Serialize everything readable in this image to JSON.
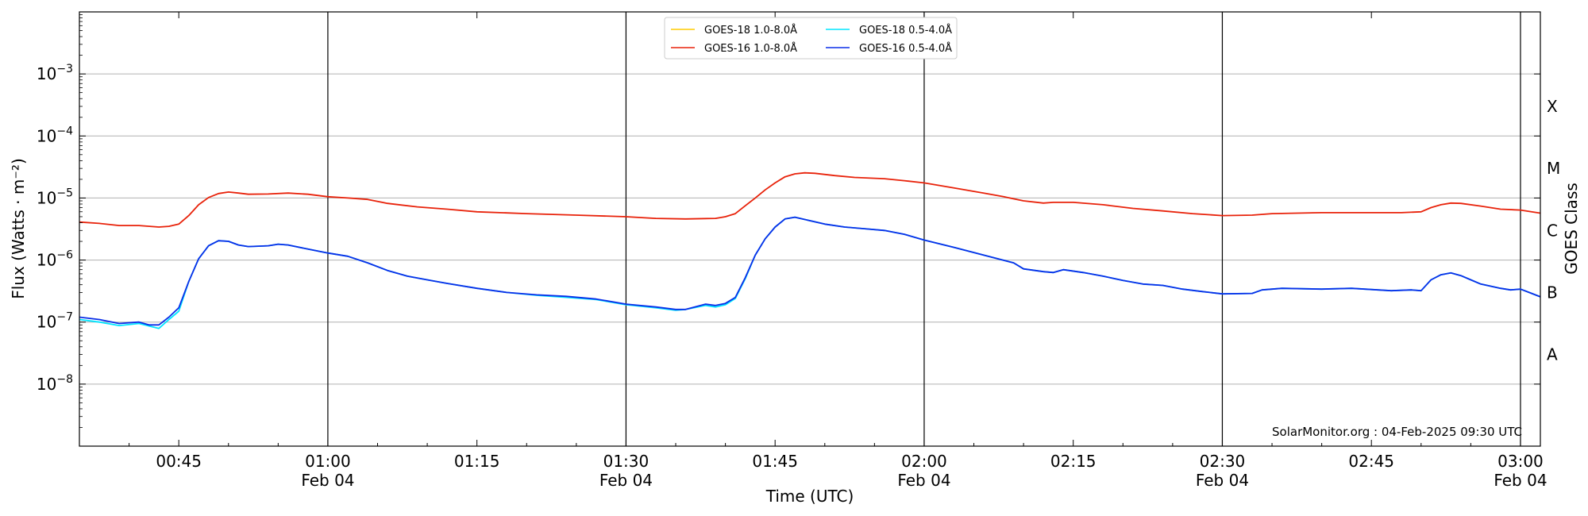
{
  "chart_data": {
    "type": "line",
    "title": "",
    "xlabel": "Time (UTC)",
    "ylabel": "Flux (Watts · m⁻²)",
    "y2label": "GOES Class",
    "yscale": "log",
    "x_unit": "UTC time HH:MM",
    "xlim": [
      "00:35",
      "03:01"
    ],
    "ylim": [
      1e-09,
      0.01
    ],
    "grid": "horizontal at decades",
    "legend_position": "top-center",
    "x_ticks": [
      {
        "time": "00:45",
        "label": "00:45",
        "date": ""
      },
      {
        "time": "01:00",
        "label": "01:00",
        "date": "Feb 04"
      },
      {
        "time": "01:15",
        "label": "01:15",
        "date": ""
      },
      {
        "time": "01:30",
        "label": "01:30",
        "date": "Feb 04"
      },
      {
        "time": "01:45",
        "label": "01:45",
        "date": ""
      },
      {
        "time": "02:00",
        "label": "02:00",
        "date": "Feb 04"
      },
      {
        "time": "02:15",
        "label": "02:15",
        "date": ""
      },
      {
        "time": "02:30",
        "label": "02:30",
        "date": "Feb 04"
      },
      {
        "time": "02:45",
        "label": "02:45",
        "date": ""
      },
      {
        "time": "03:00",
        "label": "03:00",
        "date": "Feb 04"
      }
    ],
    "vertical_lines": [
      "01:00",
      "01:30",
      "02:00",
      "02:30",
      "03:00"
    ],
    "y_ticks": [
      {
        "value": 1e-08,
        "base": "10",
        "exp": "−8"
      },
      {
        "value": 1e-07,
        "base": "10",
        "exp": "−7"
      },
      {
        "value": 1e-06,
        "base": "10",
        "exp": "−6"
      },
      {
        "value": 1e-05,
        "base": "10",
        "exp": "−5"
      },
      {
        "value": 0.0001,
        "base": "10",
        "exp": "−4"
      },
      {
        "value": 0.001,
        "base": "10",
        "exp": "−3"
      }
    ],
    "goes_classes": [
      {
        "label": "A",
        "value": 3e-08
      },
      {
        "label": "B",
        "value": 3e-07
      },
      {
        "label": "C",
        "value": 3e-06
      },
      {
        "label": "M",
        "value": 3e-05
      },
      {
        "label": "X",
        "value": 0.0003
      }
    ],
    "annotation": "SolarMonitor.org : 04-Feb-2025 09:30 UTC",
    "series": [
      {
        "name": "GOES-18 1.0-8.0Å",
        "color": "#ffcc00",
        "points": []
      },
      {
        "name": "GOES-18 0.5-4.0Å",
        "color": "#00e5ff",
        "points": [
          [
            "00:35",
            1.1e-07
          ],
          [
            "00:37",
            1e-07
          ],
          [
            "00:39",
            8.8e-08
          ],
          [
            "00:41",
            9.5e-08
          ],
          [
            "00:43",
            7.9e-08
          ],
          [
            "00:44",
            1.1e-07
          ],
          [
            "00:45",
            1.5e-07
          ],
          [
            "00:46",
            4.5e-07
          ],
          [
            "00:47",
            1.05e-06
          ],
          [
            "00:48",
            1.7e-06
          ],
          [
            "00:49",
            2.05e-06
          ],
          [
            "00:50",
            2e-06
          ],
          [
            "00:51",
            1.75e-06
          ],
          [
            "00:52",
            1.65e-06
          ],
          [
            "00:54",
            1.7e-06
          ],
          [
            "00:55",
            1.8e-06
          ],
          [
            "00:56",
            1.75e-06
          ],
          [
            "00:58",
            1.5e-06
          ],
          [
            "01:00",
            1.3e-06
          ],
          [
            "01:02",
            1.15e-06
          ],
          [
            "01:04",
            9e-07
          ],
          [
            "01:06",
            6.8e-07
          ],
          [
            "01:08",
            5.5e-07
          ],
          [
            "01:10",
            4.8e-07
          ],
          [
            "01:12",
            4.2e-07
          ],
          [
            "01:15",
            3.5e-07
          ],
          [
            "01:18",
            3e-07
          ],
          [
            "01:21",
            2.7e-07
          ],
          [
            "01:24",
            2.5e-07
          ],
          [
            "01:27",
            2.3e-07
          ],
          [
            "01:30",
            1.9e-07
          ],
          [
            "01:33",
            1.7e-07
          ],
          [
            "01:35",
            1.55e-07
          ],
          [
            "01:36",
            1.6e-07
          ],
          [
            "01:38",
            1.85e-07
          ],
          [
            "01:39",
            1.75e-07
          ],
          [
            "01:40",
            1.9e-07
          ],
          [
            "01:41",
            2.4e-07
          ],
          [
            "01:42",
            5e-07
          ],
          [
            "01:43",
            1.2e-06
          ],
          [
            "01:44",
            2.2e-06
          ],
          [
            "01:45",
            3.4e-06
          ],
          [
            "01:46",
            4.6e-06
          ],
          [
            "01:47",
            4.9e-06
          ],
          [
            "01:48",
            4.5e-06
          ],
          [
            "01:50",
            3.8e-06
          ],
          [
            "01:52",
            3.4e-06
          ],
          [
            "01:54",
            3.2e-06
          ],
          [
            "01:56",
            3e-06
          ],
          [
            "01:58",
            2.6e-06
          ],
          [
            "02:00",
            2.1e-06
          ],
          [
            "02:03",
            1.6e-06
          ],
          [
            "02:06",
            1.2e-06
          ],
          [
            "02:09",
            9e-07
          ],
          [
            "02:10",
            7.2e-07
          ],
          [
            "02:12",
            6.5e-07
          ],
          [
            "02:13",
            6.3e-07
          ],
          [
            "02:14",
            7e-07
          ],
          [
            "02:16",
            6.3e-07
          ],
          [
            "02:18",
            5.5e-07
          ],
          [
            "02:20",
            4.7e-07
          ],
          [
            "02:22",
            4.1e-07
          ],
          [
            "02:24",
            3.9e-07
          ],
          [
            "02:26",
            3.4e-07
          ],
          [
            "02:28",
            3.1e-07
          ],
          [
            "02:30",
            2.85e-07
          ],
          [
            "02:33",
            2.9e-07
          ],
          [
            "02:34",
            3.3e-07
          ],
          [
            "02:36",
            3.5e-07
          ],
          [
            "02:40",
            3.4e-07
          ],
          [
            "02:43",
            3.5e-07
          ],
          [
            "02:47",
            3.2e-07
          ],
          [
            "02:49",
            3.3e-07
          ],
          [
            "02:50",
            3.2e-07
          ],
          [
            "02:51",
            4.8e-07
          ],
          [
            "02:52",
            5.8e-07
          ],
          [
            "02:53",
            6.2e-07
          ],
          [
            "02:54",
            5.6e-07
          ],
          [
            "02:55",
            4.8e-07
          ],
          [
            "02:56",
            4.1e-07
          ],
          [
            "02:58",
            3.5e-07
          ],
          [
            "02:59",
            3.3e-07
          ],
          [
            "03:00",
            3.4e-07
          ],
          [
            "03:01",
            2.95e-07
          ],
          [
            "03:02",
            2.55e-07
          ]
        ]
      },
      {
        "name": "GOES-16 1.0-8.0Å",
        "color": "#e8220a",
        "points": [
          [
            "00:35",
            4.1e-06
          ],
          [
            "00:37",
            3.9e-06
          ],
          [
            "00:39",
            3.6e-06
          ],
          [
            "00:41",
            3.6e-06
          ],
          [
            "00:43",
            3.4e-06
          ],
          [
            "00:44",
            3.5e-06
          ],
          [
            "00:45",
            3.8e-06
          ],
          [
            "00:46",
            5.2e-06
          ],
          [
            "00:47",
            7.8e-06
          ],
          [
            "00:48",
            1.02e-05
          ],
          [
            "00:49",
            1.18e-05
          ],
          [
            "00:50",
            1.25e-05
          ],
          [
            "00:51",
            1.2e-05
          ],
          [
            "00:52",
            1.15e-05
          ],
          [
            "00:54",
            1.16e-05
          ],
          [
            "00:56",
            1.2e-05
          ],
          [
            "00:58",
            1.15e-05
          ],
          [
            "01:00",
            1.05e-05
          ],
          [
            "01:02",
            1e-05
          ],
          [
            "01:04",
            9.5e-06
          ],
          [
            "01:06",
            8.2e-06
          ],
          [
            "01:09",
            7.2e-06
          ],
          [
            "01:12",
            6.6e-06
          ],
          [
            "01:15",
            6e-06
          ],
          [
            "01:20",
            5.6e-06
          ],
          [
            "01:25",
            5.3e-06
          ],
          [
            "01:30",
            5e-06
          ],
          [
            "01:33",
            4.7e-06
          ],
          [
            "01:36",
            4.6e-06
          ],
          [
            "01:39",
            4.7e-06
          ],
          [
            "01:40",
            5e-06
          ],
          [
            "01:41",
            5.6e-06
          ],
          [
            "01:42",
            7.5e-06
          ],
          [
            "01:43",
            1e-05
          ],
          [
            "01:44",
            1.35e-05
          ],
          [
            "01:45",
            1.75e-05
          ],
          [
            "01:46",
            2.2e-05
          ],
          [
            "01:47",
            2.45e-05
          ],
          [
            "01:48",
            2.55e-05
          ],
          [
            "01:49",
            2.5e-05
          ],
          [
            "01:51",
            2.3e-05
          ],
          [
            "01:53",
            2.15e-05
          ],
          [
            "01:56",
            2.05e-05
          ],
          [
            "01:58",
            1.9e-05
          ],
          [
            "02:00",
            1.75e-05
          ],
          [
            "02:03",
            1.45e-05
          ],
          [
            "02:06",
            1.2e-05
          ],
          [
            "02:08",
            1.05e-05
          ],
          [
            "02:10",
            9e-06
          ],
          [
            "02:12",
            8.3e-06
          ],
          [
            "02:13",
            8.5e-06
          ],
          [
            "02:15",
            8.5e-06
          ],
          [
            "02:18",
            7.8e-06
          ],
          [
            "02:21",
            6.8e-06
          ],
          [
            "02:24",
            6.2e-06
          ],
          [
            "02:27",
            5.6e-06
          ],
          [
            "02:30",
            5.2e-06
          ],
          [
            "02:33",
            5.3e-06
          ],
          [
            "02:35",
            5.6e-06
          ],
          [
            "02:40",
            5.8e-06
          ],
          [
            "02:44",
            5.8e-06
          ],
          [
            "02:48",
            5.8e-06
          ],
          [
            "02:50",
            6e-06
          ],
          [
            "02:51",
            7e-06
          ],
          [
            "02:52",
            7.8e-06
          ],
          [
            "02:53",
            8.3e-06
          ],
          [
            "02:54",
            8.2e-06
          ],
          [
            "02:56",
            7.4e-06
          ],
          [
            "02:58",
            6.6e-06
          ],
          [
            "03:00",
            6.4e-06
          ],
          [
            "03:02",
            5.7e-06
          ]
        ]
      },
      {
        "name": "GOES-16 0.5-4.0Å",
        "color": "#0a2ee8",
        "points": [
          [
            "00:35",
            1.2e-07
          ],
          [
            "00:37",
            1.1e-07
          ],
          [
            "00:39",
            9.5e-08
          ],
          [
            "00:41",
            1e-07
          ],
          [
            "00:42",
            9e-08
          ],
          [
            "00:43",
            9e-08
          ],
          [
            "00:44",
            1.2e-07
          ],
          [
            "00:45",
            1.7e-07
          ],
          [
            "00:46",
            4.5e-07
          ],
          [
            "00:47",
            1.05e-06
          ],
          [
            "00:48",
            1.7e-06
          ],
          [
            "00:49",
            2.05e-06
          ],
          [
            "00:50",
            2e-06
          ],
          [
            "00:51",
            1.75e-06
          ],
          [
            "00:52",
            1.65e-06
          ],
          [
            "00:54",
            1.7e-06
          ],
          [
            "00:55",
            1.8e-06
          ],
          [
            "00:56",
            1.75e-06
          ],
          [
            "00:58",
            1.5e-06
          ],
          [
            "01:00",
            1.3e-06
          ],
          [
            "01:02",
            1.15e-06
          ],
          [
            "01:04",
            9e-07
          ],
          [
            "01:06",
            6.8e-07
          ],
          [
            "01:08",
            5.5e-07
          ],
          [
            "01:10",
            4.8e-07
          ],
          [
            "01:12",
            4.2e-07
          ],
          [
            "01:15",
            3.5e-07
          ],
          [
            "01:18",
            3e-07
          ],
          [
            "01:21",
            2.75e-07
          ],
          [
            "01:24",
            2.6e-07
          ],
          [
            "01:27",
            2.35e-07
          ],
          [
            "01:30",
            1.95e-07
          ],
          [
            "01:33",
            1.75e-07
          ],
          [
            "01:35",
            1.6e-07
          ],
          [
            "01:36",
            1.6e-07
          ],
          [
            "01:38",
            1.95e-07
          ],
          [
            "01:39",
            1.85e-07
          ],
          [
            "01:40",
            2e-07
          ],
          [
            "01:41",
            2.5e-07
          ],
          [
            "01:42",
            5.2e-07
          ],
          [
            "01:43",
            1.2e-06
          ],
          [
            "01:44",
            2.2e-06
          ],
          [
            "01:45",
            3.4e-06
          ],
          [
            "01:46",
            4.6e-06
          ],
          [
            "01:47",
            4.9e-06
          ],
          [
            "01:48",
            4.5e-06
          ],
          [
            "01:50",
            3.8e-06
          ],
          [
            "01:52",
            3.4e-06
          ],
          [
            "01:54",
            3.2e-06
          ],
          [
            "01:56",
            3e-06
          ],
          [
            "01:58",
            2.6e-06
          ],
          [
            "02:00",
            2.1e-06
          ],
          [
            "02:03",
            1.6e-06
          ],
          [
            "02:06",
            1.2e-06
          ],
          [
            "02:09",
            9e-07
          ],
          [
            "02:10",
            7.2e-07
          ],
          [
            "02:12",
            6.5e-07
          ],
          [
            "02:13",
            6.3e-07
          ],
          [
            "02:14",
            7e-07
          ],
          [
            "02:16",
            6.3e-07
          ],
          [
            "02:18",
            5.5e-07
          ],
          [
            "02:20",
            4.7e-07
          ],
          [
            "02:22",
            4.1e-07
          ],
          [
            "02:24",
            3.9e-07
          ],
          [
            "02:26",
            3.4e-07
          ],
          [
            "02:28",
            3.1e-07
          ],
          [
            "02:30",
            2.85e-07
          ],
          [
            "02:33",
            2.9e-07
          ],
          [
            "02:34",
            3.3e-07
          ],
          [
            "02:36",
            3.5e-07
          ],
          [
            "02:40",
            3.4e-07
          ],
          [
            "02:43",
            3.5e-07
          ],
          [
            "02:47",
            3.2e-07
          ],
          [
            "02:49",
            3.3e-07
          ],
          [
            "02:50",
            3.2e-07
          ],
          [
            "02:51",
            4.8e-07
          ],
          [
            "02:52",
            5.8e-07
          ],
          [
            "02:53",
            6.2e-07
          ],
          [
            "02:54",
            5.6e-07
          ],
          [
            "02:55",
            4.8e-07
          ],
          [
            "02:56",
            4.1e-07
          ],
          [
            "02:58",
            3.5e-07
          ],
          [
            "02:59",
            3.3e-07
          ],
          [
            "03:00",
            3.4e-07
          ],
          [
            "03:01",
            2.95e-07
          ],
          [
            "03:02",
            2.55e-07
          ]
        ]
      }
    ],
    "colors": {
      "grid": "#b0b0b0",
      "vline": "#000000",
      "frame": "#000000"
    }
  }
}
